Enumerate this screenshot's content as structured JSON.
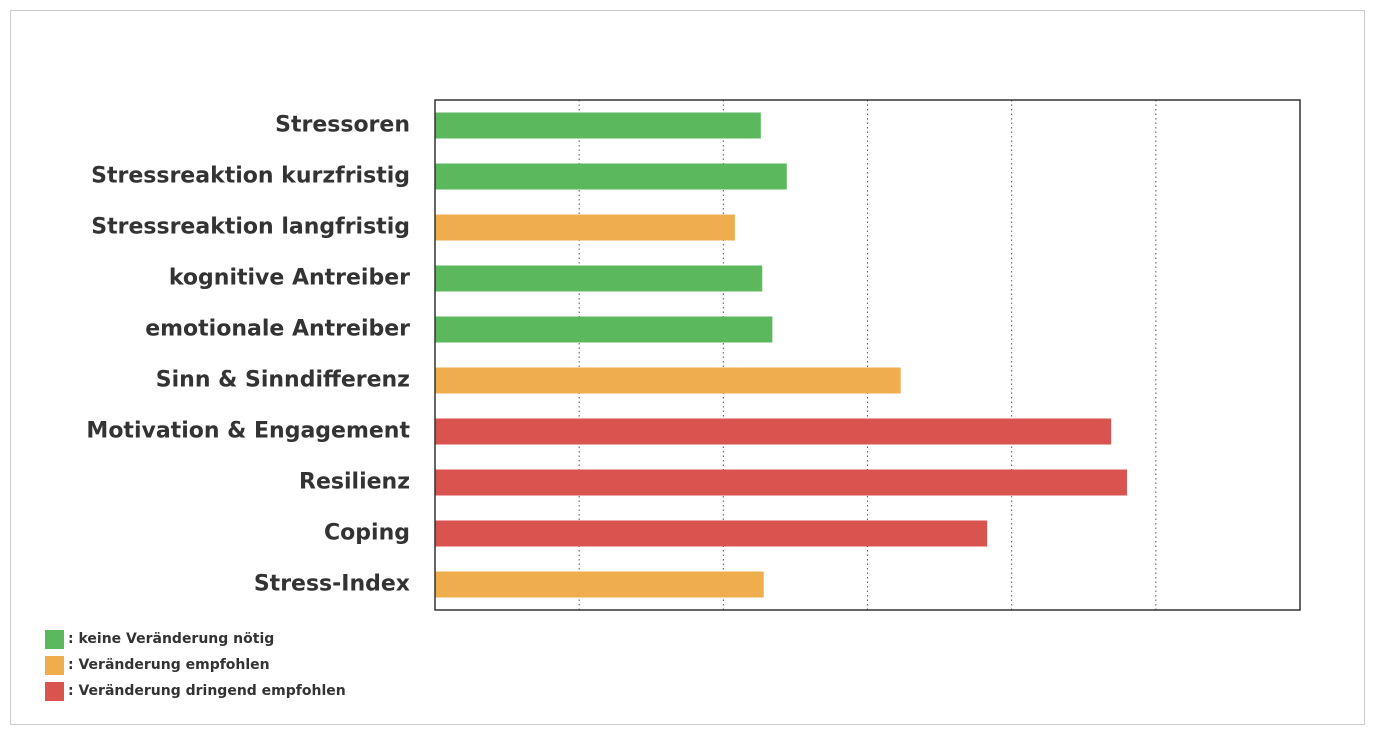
{
  "chart_data": {
    "type": "barh",
    "categories": [
      "Stressoren",
      "Stressreaktion kurzfristig",
      "Stressreaktion langfristig",
      "kognitive Antreiber",
      "emotionale Antreiber",
      "Sinn & Sinndifferenz",
      "Motivation & Engagement",
      "Resilienz",
      "Coping",
      "Stress-Index"
    ],
    "values": [
      2.26,
      2.44,
      2.08,
      2.27,
      2.34,
      3.23,
      4.69,
      4.8,
      3.83,
      2.28
    ],
    "colors": [
      "#5cb85c",
      "#5cb85c",
      "#f0ad4e",
      "#5cb85c",
      "#5cb85c",
      "#f0ad4e",
      "#d9534f",
      "#d9534f",
      "#d9534f",
      "#f0ad4e"
    ],
    "xlim": [
      0,
      6
    ],
    "xticks": [
      1,
      2,
      3,
      4,
      5
    ],
    "grid": true,
    "legend": [
      {
        "name": ": keine Veränderung nötig",
        "color": "#5cb85c"
      },
      {
        "name": ": Veränderung empfohlen",
        "color": "#f0ad4e"
      },
      {
        "name": ": Veränderung dringend empfohlen",
        "color": "#d9534f"
      }
    ]
  }
}
